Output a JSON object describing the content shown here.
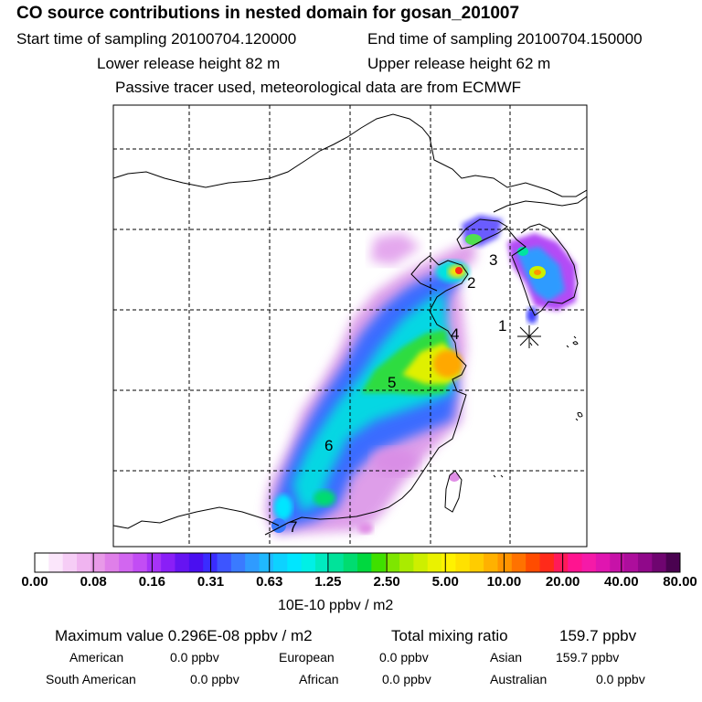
{
  "header": {
    "title": "CO  source contributions in nested domain for gosan_201007",
    "start_time": "Start time of sampling 20100704.120000",
    "end_time": "End time of sampling 20100704.150000",
    "lower_height": "Lower release height   82 m",
    "upper_height": "Upper release height   62 m",
    "tracer_note": "Passive tracer used, meteorological data are from ECMWF"
  },
  "map": {
    "region_labels": [
      "1",
      "2",
      "3",
      "4",
      "5",
      "6",
      "7"
    ],
    "receptor_marker": "asterisk-icon"
  },
  "colorbar": {
    "ticks": [
      "0.00",
      "0.08",
      "0.16",
      "0.31",
      "0.63",
      "1.25",
      "2.50",
      "5.00",
      "10.00",
      "20.00",
      "40.00",
      "80.00"
    ],
    "unit": "10E-10 ppbv / m2",
    "colors": [
      "#ffffff",
      "#fbe6fb",
      "#f6cdf6",
      "#f0b4f0",
      "#e89ae8",
      "#df7fe9",
      "#d266f0",
      "#c24df4",
      "#a733f7",
      "#8a1ff7",
      "#6614f2",
      "#4a0ff0",
      "#3a2cff",
      "#3d55ff",
      "#3a7aff",
      "#2f9bff",
      "#20b8ff",
      "#0dd2ff",
      "#00e6ff",
      "#00f0e6",
      "#00eac0",
      "#00e39a",
      "#00dc70",
      "#00d83f",
      "#3fe000",
      "#7ee600",
      "#aaeb00",
      "#cdef00",
      "#eaf200",
      "#fff200",
      "#ffe100",
      "#ffcc00",
      "#ffb100",
      "#ff9400",
      "#ff7200",
      "#ff4c00",
      "#ff2a1a",
      "#ff1a5a",
      "#ff1490",
      "#f51aa8",
      "#e015b0",
      "#c712a8",
      "#ad0e9c",
      "#90088a",
      "#6f0570",
      "#4a0250"
    ]
  },
  "stats": {
    "max_value": "Maximum value  0.296E-08 ppbv / m2",
    "total_label": "Total mixing ratio",
    "total_value": "159.7 ppbv",
    "american_label": "American",
    "american_value": "0.0 ppbv",
    "european_label": "European",
    "european_value": "0.0 ppbv",
    "asian_label": "Asian",
    "asian_value": "159.7 ppbv",
    "south_american_label": "South American",
    "south_american_value": "0.0 ppbv",
    "african_label": "African",
    "african_value": "0.0 ppbv",
    "australian_label": "Australian",
    "australian_value": "0.0 ppbv"
  }
}
